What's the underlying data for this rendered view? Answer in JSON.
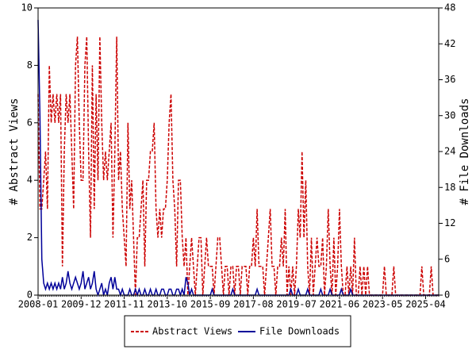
{
  "chart_data": {
    "type": "line",
    "categories": [
      "2008-01",
      null,
      null,
      null,
      null,
      null,
      null,
      null,
      null,
      null,
      null,
      null,
      null,
      null,
      null,
      null,
      null,
      null,
      null,
      null,
      null,
      null,
      null,
      "2009-12",
      null,
      null,
      null,
      null,
      null,
      null,
      null,
      null,
      null,
      null,
      null,
      null,
      null,
      null,
      null,
      null,
      null,
      null,
      null,
      null,
      null,
      null,
      "2011-11",
      null,
      null,
      null,
      null,
      null,
      null,
      null,
      null,
      null,
      null,
      null,
      null,
      null,
      null,
      null,
      null,
      null,
      null,
      null,
      null,
      null,
      null,
      "2013-10",
      null,
      null,
      null,
      null,
      null,
      null,
      null,
      null,
      null,
      null,
      null,
      null,
      null,
      null,
      null,
      null,
      null,
      null,
      null,
      null,
      null,
      null,
      "2015-09",
      null,
      null,
      null,
      null,
      null,
      null,
      null,
      null,
      null,
      null,
      null,
      null,
      null,
      null,
      null,
      null,
      null,
      null,
      null,
      null,
      null,
      null,
      "2017-08",
      null,
      null,
      null,
      null,
      null,
      null,
      null,
      null,
      null,
      null,
      null,
      null,
      null,
      null,
      null,
      null,
      null,
      null,
      null,
      null,
      null,
      null,
      "2019-07",
      null,
      null,
      null,
      null,
      null,
      null,
      null,
      null,
      null,
      null,
      null,
      null,
      null,
      null,
      null,
      null,
      null,
      null,
      null,
      null,
      null,
      null,
      "2021-06",
      null,
      null,
      null,
      null,
      null,
      null,
      null,
      null,
      null,
      null,
      null,
      null,
      null,
      null,
      null,
      null,
      null,
      null,
      null,
      null,
      null,
      null,
      "2023-05",
      null,
      null,
      null,
      null,
      null,
      null,
      null,
      null,
      null,
      null,
      null,
      null,
      null,
      null,
      null,
      null,
      null,
      null,
      null,
      null,
      null,
      null,
      "2025-04",
      null,
      null,
      null,
      null,
      null,
      null,
      null
    ],
    "series": [
      {
        "name": "Abstract Views",
        "color": "#cc0000",
        "dash": true,
        "values": [
          7,
          3,
          3,
          4,
          5,
          3,
          8,
          6,
          7,
          6,
          7,
          6,
          7,
          1,
          5,
          7,
          6,
          7,
          5,
          3,
          8,
          9,
          6,
          4,
          4,
          8,
          9,
          5,
          2,
          8,
          3,
          7,
          4,
          9,
          6,
          4,
          5,
          4,
          5,
          6,
          2,
          5,
          9,
          4,
          5,
          3,
          2,
          1,
          6,
          3,
          4,
          2,
          0,
          2,
          2,
          3,
          4,
          1,
          4,
          4,
          5,
          5,
          6,
          3,
          2,
          3,
          2,
          3,
          3,
          4,
          6,
          7,
          4,
          3,
          1,
          4,
          4,
          2,
          1,
          2,
          0,
          1,
          2,
          1,
          0,
          1,
          2,
          2,
          0,
          1,
          2,
          1,
          1,
          1,
          0,
          1,
          2,
          2,
          1,
          0,
          1,
          1,
          0,
          1,
          1,
          0,
          1,
          1,
          0,
          1,
          1,
          1,
          0,
          1,
          1,
          2,
          1,
          3,
          1,
          1,
          1,
          0,
          1,
          2,
          3,
          1,
          1,
          0,
          1,
          1,
          2,
          1,
          3,
          0,
          1,
          0,
          1,
          0,
          1,
          3,
          2,
          5,
          2,
          4,
          1,
          0,
          2,
          0,
          1,
          2,
          1,
          1,
          2,
          0,
          1,
          3,
          1,
          0,
          2,
          0,
          1,
          3,
          1,
          0,
          0,
          1,
          0,
          1,
          0,
          2,
          0,
          0,
          1,
          0,
          1,
          0,
          1,
          0,
          0,
          0,
          0,
          0,
          0,
          0,
          0,
          1,
          0,
          0,
          0,
          0,
          1,
          0,
          0,
          0,
          0,
          0,
          0,
          0,
          0,
          0,
          0,
          0,
          0,
          0,
          0,
          1,
          0,
          0,
          0,
          0,
          1,
          0,
          0,
          0,
          0
        ]
      },
      {
        "name": "File Downloads",
        "color": "#000099",
        "dash": false,
        "axis": "y2",
        "values": [
          46,
          30,
          6,
          2,
          1,
          2,
          1,
          2,
          1,
          2,
          1,
          2,
          1,
          3,
          1,
          2,
          4,
          2,
          1,
          2,
          3,
          2,
          1,
          2,
          4,
          1,
          2,
          3,
          1,
          2,
          4,
          1,
          0,
          1,
          2,
          0,
          1,
          0,
          2,
          3,
          1,
          3,
          1,
          1,
          0,
          1,
          0,
          0,
          0,
          1,
          0,
          0,
          1,
          0,
          1,
          0,
          0,
          1,
          0,
          0,
          1,
          0,
          0,
          1,
          0,
          0,
          1,
          1,
          0,
          0,
          1,
          1,
          0,
          0,
          1,
          1,
          0,
          1,
          0,
          3,
          2,
          0,
          1,
          0,
          0,
          0,
          0,
          0,
          0,
          0,
          0,
          0,
          0,
          1,
          0,
          0,
          0,
          0,
          0,
          0,
          0,
          0,
          0,
          0,
          1,
          0,
          0,
          0,
          0,
          0,
          0,
          0,
          0,
          0,
          0,
          0,
          0,
          1,
          0,
          0,
          0,
          0,
          0,
          0,
          0,
          0,
          0,
          0,
          0,
          0,
          0,
          0,
          0,
          0,
          0,
          1,
          0,
          0,
          0,
          1,
          0,
          0,
          0,
          0,
          1,
          0,
          0,
          0,
          0,
          0,
          0,
          1,
          0,
          0,
          0,
          0,
          1,
          0,
          0,
          0,
          0,
          0,
          1,
          0,
          0,
          0,
          0,
          1,
          0,
          0,
          0,
          0,
          0,
          0,
          0,
          0,
          0,
          0,
          0,
          0,
          0,
          0,
          0,
          0,
          0,
          0,
          0,
          0,
          0,
          0,
          0,
          0,
          0,
          0,
          0,
          0,
          0,
          0,
          0,
          0,
          0,
          0,
          0,
          0,
          0,
          0,
          0,
          0,
          0,
          0,
          0,
          0,
          0,
          0,
          0
        ]
      }
    ],
    "y_label": "# Abstract Views",
    "y2_label": "# File Downloads",
    "ylim": [
      0,
      10
    ],
    "yticks": [
      0,
      2,
      4,
      6,
      8,
      10
    ],
    "y2lim": [
      0,
      48
    ],
    "y2ticks": [
      0,
      6,
      12,
      18,
      24,
      30,
      36,
      42,
      48
    ],
    "legend": "bottom"
  }
}
